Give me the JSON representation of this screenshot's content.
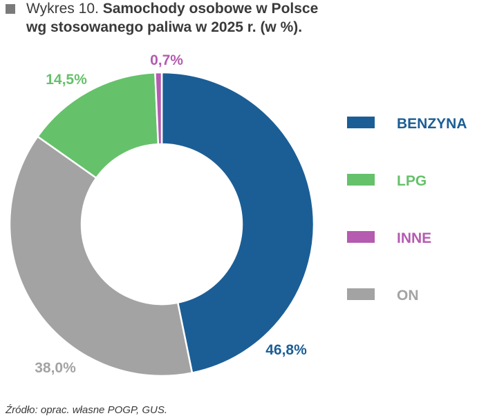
{
  "title": {
    "prefix": "Wykres 10.",
    "main_line1": "Samochody osobowe w Polsce",
    "main_line2": "wg stosowanego paliwa w 2025 r. (w %)."
  },
  "source": "Źródło: oprac. własne POGP, GUS.",
  "chart_data": {
    "type": "pie",
    "variant": "donut",
    "title": "Samochody osobowe w Polsce wg stosowanego paliwa w 2025 r. (w %).",
    "unit": "%",
    "slices": [
      {
        "name": "BENZYNA",
        "value": 46.8,
        "label": "46,8%",
        "color": "#1b5e96"
      },
      {
        "name": "ON",
        "value": 38.0,
        "label": "38,0%",
        "color": "#a3a3a3"
      },
      {
        "name": "LPG",
        "value": 14.5,
        "label": "14,5%",
        "color": "#66c16b"
      },
      {
        "name": "INNE",
        "value": 0.7,
        "label": "0,7%",
        "color": "#b55bb0"
      }
    ],
    "legend": {
      "placement": "right",
      "items": [
        {
          "name": "BENZYNA",
          "color": "#1b5e96"
        },
        {
          "name": "LPG",
          "color": "#66c16b"
        },
        {
          "name": "INNE",
          "color": "#b55bb0"
        },
        {
          "name": "ON",
          "color": "#a3a3a3"
        }
      ]
    }
  }
}
